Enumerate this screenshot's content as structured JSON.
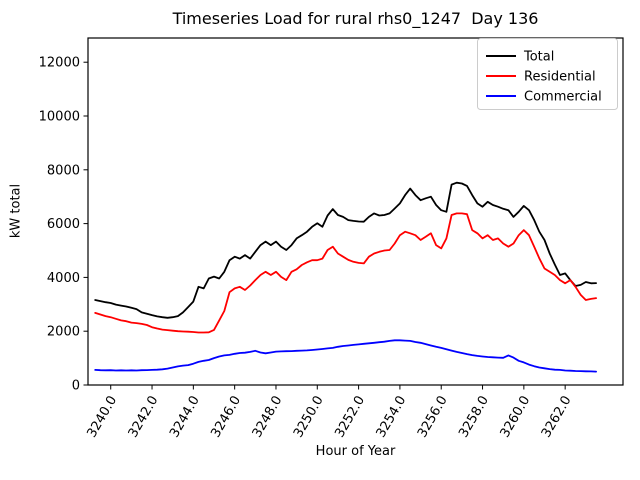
{
  "chart_data": {
    "type": "line",
    "title": "Timeseries Load for rural rhs0_1247  Day 136",
    "xlabel": "Hour of Year",
    "ylabel": "kW total",
    "grid": false,
    "legend_position": "upper right",
    "xlim": [
      3238.9,
      3264.8
    ],
    "ylim": [
      0,
      12900
    ],
    "xticks": [
      3240,
      3242,
      3244,
      3246,
      3248,
      3250,
      3252,
      3254,
      3256,
      3258,
      3260,
      3262
    ],
    "xtick_labels": [
      "3240.0",
      "3242.0",
      "3244.0",
      "3246.0",
      "3248.0",
      "3250.0",
      "3252.0",
      "3254.0",
      "3256.0",
      "3258.0",
      "3260.0",
      "3262.0"
    ],
    "yticks": [
      0,
      2000,
      4000,
      6000,
      8000,
      10000,
      12000
    ],
    "ytick_labels": [
      "0",
      "2000",
      "4000",
      "6000",
      "8000",
      "10000",
      "12000"
    ],
    "x": [
      3239.25,
      3239.5,
      3239.75,
      3240,
      3240.25,
      3240.5,
      3240.75,
      3241,
      3241.25,
      3241.5,
      3241.75,
      3242,
      3242.25,
      3242.5,
      3242.75,
      3243,
      3243.25,
      3243.5,
      3243.75,
      3244,
      3244.25,
      3244.5,
      3244.75,
      3245,
      3245.25,
      3245.5,
      3245.75,
      3246,
      3246.25,
      3246.5,
      3246.75,
      3247,
      3247.25,
      3247.5,
      3247.75,
      3248,
      3248.25,
      3248.5,
      3248.75,
      3249,
      3249.25,
      3249.5,
      3249.75,
      3250,
      3250.25,
      3250.5,
      3250.75,
      3251,
      3251.25,
      3251.5,
      3251.75,
      3252,
      3252.25,
      3252.5,
      3252.75,
      3253,
      3253.25,
      3253.5,
      3253.75,
      3254,
      3254.25,
      3254.5,
      3254.75,
      3255,
      3255.25,
      3255.5,
      3255.75,
      3256,
      3256.25,
      3256.5,
      3256.75,
      3257,
      3257.25,
      3257.5,
      3257.75,
      3258,
      3258.25,
      3258.5,
      3258.75,
      3259,
      3259.25,
      3259.5,
      3259.75,
      3260,
      3260.25,
      3260.5,
      3260.75,
      3261,
      3261.25,
      3261.5,
      3261.75,
      3262,
      3262.25,
      3262.5,
      3262.75,
      3263,
      3263.25,
      3263.5
    ],
    "series": [
      {
        "name": "Total",
        "color": "#000000",
        "values": [
          3160,
          3120,
          3080,
          3050,
          2990,
          2950,
          2920,
          2870,
          2820,
          2700,
          2650,
          2600,
          2550,
          2520,
          2500,
          2520,
          2560,
          2700,
          2900,
          3100,
          3650,
          3590,
          3960,
          4030,
          3960,
          4210,
          4640,
          4770,
          4700,
          4830,
          4700,
          4950,
          5200,
          5330,
          5200,
          5330,
          5140,
          5020,
          5200,
          5450,
          5570,
          5700,
          5880,
          6010,
          5880,
          6300,
          6540,
          6320,
          6250,
          6130,
          6100,
          6080,
          6070,
          6250,
          6380,
          6300,
          6320,
          6380,
          6560,
          6750,
          7060,
          7300,
          7060,
          6870,
          6940,
          7000,
          6690,
          6500,
          6440,
          7450,
          7520,
          7490,
          7400,
          7060,
          6750,
          6630,
          6810,
          6690,
          6630,
          6550,
          6500,
          6250,
          6440,
          6660,
          6500,
          6130,
          5700,
          5390,
          4890,
          4480,
          4090,
          4150,
          3900,
          3680,
          3720,
          3830,
          3780,
          3790
        ]
      },
      {
        "name": "Residential",
        "color": "#ff0000",
        "values": [
          2680,
          2620,
          2560,
          2520,
          2460,
          2400,
          2370,
          2320,
          2300,
          2270,
          2230,
          2150,
          2100,
          2060,
          2040,
          2020,
          2000,
          1990,
          1980,
          1970,
          1950,
          1950,
          1960,
          2050,
          2400,
          2750,
          3450,
          3590,
          3650,
          3530,
          3700,
          3900,
          4090,
          4210,
          4090,
          4210,
          4020,
          3900,
          4210,
          4300,
          4460,
          4560,
          4640,
          4640,
          4700,
          5020,
          5140,
          4890,
          4770,
          4650,
          4580,
          4540,
          4520,
          4770,
          4890,
          4950,
          5000,
          5020,
          5260,
          5570,
          5700,
          5640,
          5570,
          5390,
          5510,
          5640,
          5200,
          5080,
          5450,
          6320,
          6380,
          6380,
          6350,
          5760,
          5640,
          5450,
          5570,
          5390,
          5450,
          5260,
          5140,
          5260,
          5570,
          5760,
          5570,
          5140,
          4710,
          4330,
          4210,
          4090,
          3900,
          3780,
          3900,
          3650,
          3350,
          3160,
          3200,
          3230
        ]
      },
      {
        "name": "Commercial",
        "color": "#0000ff",
        "values": [
          560,
          550,
          545,
          550,
          540,
          545,
          540,
          545,
          540,
          550,
          555,
          560,
          570,
          585,
          610,
          650,
          690,
          720,
          740,
          790,
          860,
          900,
          930,
          1000,
          1060,
          1100,
          1120,
          1160,
          1190,
          1200,
          1230,
          1270,
          1210,
          1180,
          1210,
          1240,
          1250,
          1255,
          1260,
          1270,
          1280,
          1285,
          1300,
          1320,
          1340,
          1360,
          1380,
          1420,
          1450,
          1470,
          1490,
          1510,
          1530,
          1550,
          1570,
          1590,
          1610,
          1640,
          1660,
          1660,
          1650,
          1640,
          1600,
          1570,
          1520,
          1470,
          1420,
          1380,
          1330,
          1280,
          1230,
          1190,
          1150,
          1110,
          1080,
          1060,
          1040,
          1030,
          1020,
          1010,
          1100,
          1020,
          900,
          840,
          760,
          700,
          650,
          620,
          590,
          570,
          560,
          540,
          530,
          520,
          515,
          510,
          505,
          500
        ]
      }
    ]
  }
}
